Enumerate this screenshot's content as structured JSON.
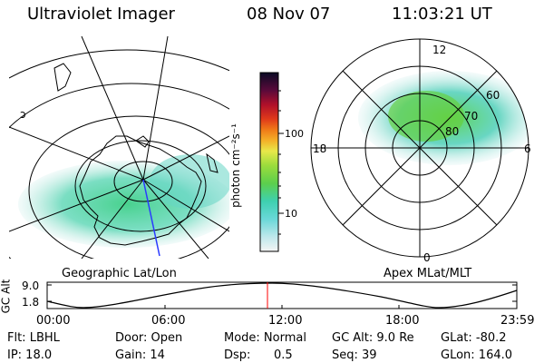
{
  "header": {
    "instrument": "Ultraviolet Imager",
    "date": "08 Nov 07",
    "time": "11:03:21 UT"
  },
  "geo_panel": {
    "label": "Geographic Lat/Lon"
  },
  "mag_panel": {
    "label": "Apex MLat/MLT",
    "mlt_labels": [
      "12",
      "18",
      "6",
      "0"
    ],
    "mlat_labels": [
      "60",
      "70",
      "80"
    ]
  },
  "colorbar": {
    "unit_label": "photon cm⁻²s⁻¹",
    "ticks": [
      "100",
      "10"
    ]
  },
  "altitude_plot": {
    "ylabel": "GC Alt",
    "y_ticks": [
      "9.0",
      "1.8"
    ],
    "x_ticks": [
      "00:00",
      "06:00",
      "12:00",
      "18:00",
      "23:59"
    ],
    "marker_color": "#ff0000"
  },
  "status": {
    "flt": "Flt: LBHL",
    "ip": "IP: 18.0",
    "door": "Door: Open",
    "gain": "Gain: 14",
    "mode": "Mode: Normal",
    "dsp_label": "Dsp:",
    "dsp_value": "0.5",
    "gc_alt": "GC Alt: 9.0 Re",
    "seq": "Seq: 39",
    "glat": "GLat: -80.2",
    "glon": "GLon: 164.0"
  }
}
